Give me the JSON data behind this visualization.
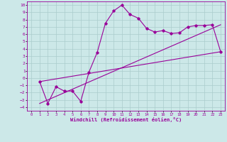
{
  "xlabel": "Windchill (Refroidissement éolien,°C)",
  "xlim": [
    -0.5,
    23.5
  ],
  "ylim": [
    -4.5,
    10.5
  ],
  "xticks": [
    0,
    1,
    2,
    3,
    4,
    5,
    6,
    7,
    8,
    9,
    10,
    11,
    12,
    13,
    14,
    15,
    16,
    17,
    18,
    19,
    20,
    21,
    22,
    23
  ],
  "yticks": [
    -4,
    -3,
    -2,
    -1,
    0,
    1,
    2,
    3,
    4,
    5,
    6,
    7,
    8,
    9,
    10
  ],
  "bg_color": "#cce8e8",
  "grid_color": "#aacccc",
  "line_color": "#990099",
  "curve_x": [
    1,
    2,
    3,
    4,
    5,
    6,
    7,
    8,
    9,
    10,
    11,
    12,
    13,
    14,
    15,
    16,
    17,
    18,
    19,
    20,
    21,
    22,
    23
  ],
  "curve_y": [
    -0.5,
    -3.5,
    -1.2,
    -1.8,
    -1.8,
    -3.2,
    0.8,
    3.5,
    7.5,
    9.2,
    10.0,
    8.7,
    8.2,
    6.8,
    6.3,
    6.5,
    6.1,
    6.2,
    7.0,
    7.2,
    7.2,
    7.3,
    3.6
  ],
  "line1_x": [
    1,
    23
  ],
  "line1_y": [
    -0.5,
    3.6
  ],
  "line2_x": [
    1,
    23
  ],
  "line2_y": [
    -3.5,
    7.3
  ]
}
